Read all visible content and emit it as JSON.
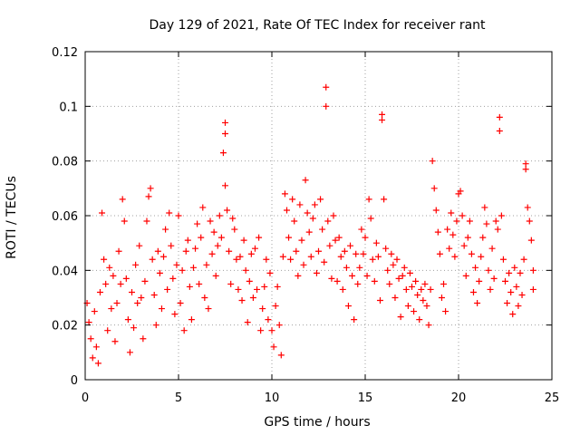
{
  "chart_data": {
    "type": "scatter",
    "title": "Day 129 of 2021, Rate Of TEC Index for receiver rant",
    "xlabel": "GPS time / hours",
    "ylabel": "ROTI / TECUs",
    "xlim": [
      0,
      25
    ],
    "ylim": [
      0,
      0.12
    ],
    "x_ticks": [
      0,
      5,
      10,
      15,
      20,
      25
    ],
    "x_tick_labels": [
      "0",
      "5",
      "10",
      "15",
      "20",
      "25"
    ],
    "y_ticks": [
      0,
      0.02,
      0.04,
      0.06,
      0.08,
      0.1,
      0.12
    ],
    "y_tick_labels": [
      "0",
      "0.02",
      "0.04",
      "0.06",
      "0.08",
      "0.1",
      "0.12"
    ],
    "grid": true,
    "marker": "+",
    "color": "#ff0000",
    "series": [
      {
        "points": [
          [
            0.1,
            0.028
          ],
          [
            0.2,
            0.021
          ],
          [
            0.3,
            0.015
          ],
          [
            0.4,
            0.008
          ],
          [
            0.5,
            0.025
          ],
          [
            0.6,
            0.012
          ],
          [
            0.7,
            0.006
          ],
          [
            0.8,
            0.032
          ],
          [
            0.9,
            0.061
          ],
          [
            1.0,
            0.044
          ],
          [
            1.1,
            0.035
          ],
          [
            1.2,
            0.018
          ],
          [
            1.3,
            0.041
          ],
          [
            1.4,
            0.026
          ],
          [
            1.5,
            0.038
          ],
          [
            1.6,
            0.014
          ],
          [
            1.7,
            0.028
          ],
          [
            1.8,
            0.047
          ],
          [
            1.9,
            0.035
          ],
          [
            2.0,
            0.066
          ],
          [
            2.1,
            0.058
          ],
          [
            2.2,
            0.037
          ],
          [
            2.3,
            0.022
          ],
          [
            2.4,
            0.01
          ],
          [
            2.5,
            0.032
          ],
          [
            2.6,
            0.019
          ],
          [
            2.7,
            0.042
          ],
          [
            2.8,
            0.028
          ],
          [
            2.9,
            0.049
          ],
          [
            3.0,
            0.03
          ],
          [
            3.1,
            0.015
          ],
          [
            3.2,
            0.036
          ],
          [
            3.3,
            0.058
          ],
          [
            3.4,
            0.067
          ],
          [
            3.5,
            0.07
          ],
          [
            3.6,
            0.044
          ],
          [
            3.7,
            0.031
          ],
          [
            3.8,
            0.02
          ],
          [
            3.9,
            0.047
          ],
          [
            4.0,
            0.039
          ],
          [
            4.1,
            0.026
          ],
          [
            4.2,
            0.045
          ],
          [
            4.3,
            0.055
          ],
          [
            4.4,
            0.033
          ],
          [
            4.5,
            0.061
          ],
          [
            4.6,
            0.049
          ],
          [
            4.7,
            0.037
          ],
          [
            4.8,
            0.024
          ],
          [
            4.9,
            0.042
          ],
          [
            5.0,
            0.06
          ],
          [
            5.1,
            0.028
          ],
          [
            5.2,
            0.04
          ],
          [
            5.3,
            0.018
          ],
          [
            5.4,
            0.047
          ],
          [
            5.5,
            0.051
          ],
          [
            5.6,
            0.034
          ],
          [
            5.7,
            0.022
          ],
          [
            5.8,
            0.041
          ],
          [
            5.9,
            0.048
          ],
          [
            6.0,
            0.057
          ],
          [
            6.1,
            0.035
          ],
          [
            6.2,
            0.052
          ],
          [
            6.3,
            0.063
          ],
          [
            6.4,
            0.03
          ],
          [
            6.5,
            0.042
          ],
          [
            6.6,
            0.026
          ],
          [
            6.7,
            0.058
          ],
          [
            6.8,
            0.046
          ],
          [
            6.9,
            0.054
          ],
          [
            7.0,
            0.038
          ],
          [
            7.1,
            0.049
          ],
          [
            7.2,
            0.06
          ],
          [
            7.3,
            0.052
          ],
          [
            7.4,
            0.083
          ],
          [
            7.5,
            0.071
          ],
          [
            7.5,
            0.094
          ],
          [
            7.5,
            0.09
          ],
          [
            7.6,
            0.062
          ],
          [
            7.7,
            0.047
          ],
          [
            7.8,
            0.035
          ],
          [
            7.9,
            0.059
          ],
          [
            8.0,
            0.055
          ],
          [
            8.1,
            0.044
          ],
          [
            8.2,
            0.033
          ],
          [
            8.3,
            0.045
          ],
          [
            8.4,
            0.029
          ],
          [
            8.5,
            0.051
          ],
          [
            8.6,
            0.04
          ],
          [
            8.7,
            0.021
          ],
          [
            8.8,
            0.036
          ],
          [
            8.9,
            0.046
          ],
          [
            9.0,
            0.03
          ],
          [
            9.1,
            0.048
          ],
          [
            9.2,
            0.033
          ],
          [
            9.3,
            0.052
          ],
          [
            9.4,
            0.018
          ],
          [
            9.5,
            0.026
          ],
          [
            9.6,
            0.034
          ],
          [
            9.7,
            0.044
          ],
          [
            9.8,
            0.022
          ],
          [
            9.9,
            0.039
          ],
          [
            10.0,
            0.018
          ],
          [
            10.1,
            0.012
          ],
          [
            10.2,
            0.027
          ],
          [
            10.3,
            0.034
          ],
          [
            10.4,
            0.02
          ],
          [
            10.5,
            0.009
          ],
          [
            10.6,
            0.045
          ],
          [
            10.7,
            0.068
          ],
          [
            10.8,
            0.062
          ],
          [
            10.9,
            0.052
          ],
          [
            11.0,
            0.044
          ],
          [
            11.1,
            0.066
          ],
          [
            11.2,
            0.058
          ],
          [
            11.3,
            0.047
          ],
          [
            11.4,
            0.038
          ],
          [
            11.5,
            0.064
          ],
          [
            11.6,
            0.051
          ],
          [
            11.7,
            0.042
          ],
          [
            11.8,
            0.073
          ],
          [
            11.9,
            0.061
          ],
          [
            12.0,
            0.054
          ],
          [
            12.1,
            0.045
          ],
          [
            12.2,
            0.059
          ],
          [
            12.3,
            0.064
          ],
          [
            12.4,
            0.039
          ],
          [
            12.5,
            0.047
          ],
          [
            12.6,
            0.066
          ],
          [
            12.7,
            0.055
          ],
          [
            12.8,
            0.043
          ],
          [
            12.9,
            0.107
          ],
          [
            12.9,
            0.1
          ],
          [
            13.0,
            0.058
          ],
          [
            13.1,
            0.049
          ],
          [
            13.2,
            0.037
          ],
          [
            13.3,
            0.06
          ],
          [
            13.4,
            0.051
          ],
          [
            13.5,
            0.036
          ],
          [
            13.6,
            0.052
          ],
          [
            13.7,
            0.045
          ],
          [
            13.8,
            0.033
          ],
          [
            13.9,
            0.047
          ],
          [
            14.0,
            0.041
          ],
          [
            14.1,
            0.027
          ],
          [
            14.2,
            0.049
          ],
          [
            14.3,
            0.038
          ],
          [
            14.4,
            0.022
          ],
          [
            14.5,
            0.046
          ],
          [
            14.6,
            0.035
          ],
          [
            14.7,
            0.041
          ],
          [
            14.8,
            0.055
          ],
          [
            14.9,
            0.046
          ],
          [
            15.0,
            0.052
          ],
          [
            15.1,
            0.038
          ],
          [
            15.2,
            0.066
          ],
          [
            15.3,
            0.059
          ],
          [
            15.4,
            0.044
          ],
          [
            15.5,
            0.036
          ],
          [
            15.6,
            0.05
          ],
          [
            15.7,
            0.045
          ],
          [
            15.8,
            0.029
          ],
          [
            15.9,
            0.097
          ],
          [
            15.9,
            0.095
          ],
          [
            16.0,
            0.066
          ],
          [
            16.1,
            0.048
          ],
          [
            16.2,
            0.04
          ],
          [
            16.3,
            0.035
          ],
          [
            16.4,
            0.046
          ],
          [
            16.5,
            0.042
          ],
          [
            16.6,
            0.03
          ],
          [
            16.7,
            0.044
          ],
          [
            16.8,
            0.037
          ],
          [
            16.9,
            0.023
          ],
          [
            17.0,
            0.038
          ],
          [
            17.1,
            0.041
          ],
          [
            17.2,
            0.033
          ],
          [
            17.3,
            0.027
          ],
          [
            17.4,
            0.039
          ],
          [
            17.5,
            0.034
          ],
          [
            17.6,
            0.025
          ],
          [
            17.7,
            0.036
          ],
          [
            17.8,
            0.031
          ],
          [
            17.9,
            0.022
          ],
          [
            18.0,
            0.033
          ],
          [
            18.1,
            0.029
          ],
          [
            18.2,
            0.035
          ],
          [
            18.3,
            0.027
          ],
          [
            18.4,
            0.02
          ],
          [
            18.5,
            0.033
          ],
          [
            18.6,
            0.08
          ],
          [
            18.7,
            0.07
          ],
          [
            18.8,
            0.062
          ],
          [
            18.9,
            0.054
          ],
          [
            19.0,
            0.046
          ],
          [
            19.1,
            0.03
          ],
          [
            19.2,
            0.035
          ],
          [
            19.3,
            0.025
          ],
          [
            19.4,
            0.055
          ],
          [
            19.5,
            0.048
          ],
          [
            19.6,
            0.061
          ],
          [
            19.7,
            0.053
          ],
          [
            19.8,
            0.045
          ],
          [
            19.9,
            0.058
          ],
          [
            20.0,
            0.068
          ],
          [
            20.1,
            0.069
          ],
          [
            20.2,
            0.06
          ],
          [
            20.3,
            0.049
          ],
          [
            20.4,
            0.038
          ],
          [
            20.5,
            0.052
          ],
          [
            20.6,
            0.058
          ],
          [
            20.7,
            0.046
          ],
          [
            20.8,
            0.032
          ],
          [
            20.9,
            0.041
          ],
          [
            21.0,
            0.028
          ],
          [
            21.1,
            0.036
          ],
          [
            21.2,
            0.045
          ],
          [
            21.3,
            0.052
          ],
          [
            21.4,
            0.063
          ],
          [
            21.5,
            0.057
          ],
          [
            21.6,
            0.04
          ],
          [
            21.7,
            0.033
          ],
          [
            21.8,
            0.048
          ],
          [
            21.9,
            0.037
          ],
          [
            22.0,
            0.058
          ],
          [
            22.1,
            0.055
          ],
          [
            22.2,
            0.096
          ],
          [
            22.2,
            0.091
          ],
          [
            22.3,
            0.06
          ],
          [
            22.4,
            0.044
          ],
          [
            22.5,
            0.036
          ],
          [
            22.6,
            0.028
          ],
          [
            22.7,
            0.039
          ],
          [
            22.8,
            0.032
          ],
          [
            22.9,
            0.024
          ],
          [
            23.0,
            0.041
          ],
          [
            23.1,
            0.034
          ],
          [
            23.2,
            0.027
          ],
          [
            23.3,
            0.039
          ],
          [
            23.4,
            0.031
          ],
          [
            23.5,
            0.044
          ],
          [
            23.6,
            0.079
          ],
          [
            23.6,
            0.077
          ],
          [
            23.7,
            0.063
          ],
          [
            23.8,
            0.058
          ],
          [
            23.9,
            0.051
          ],
          [
            24.0,
            0.04
          ],
          [
            24.0,
            0.033
          ]
        ]
      }
    ]
  }
}
